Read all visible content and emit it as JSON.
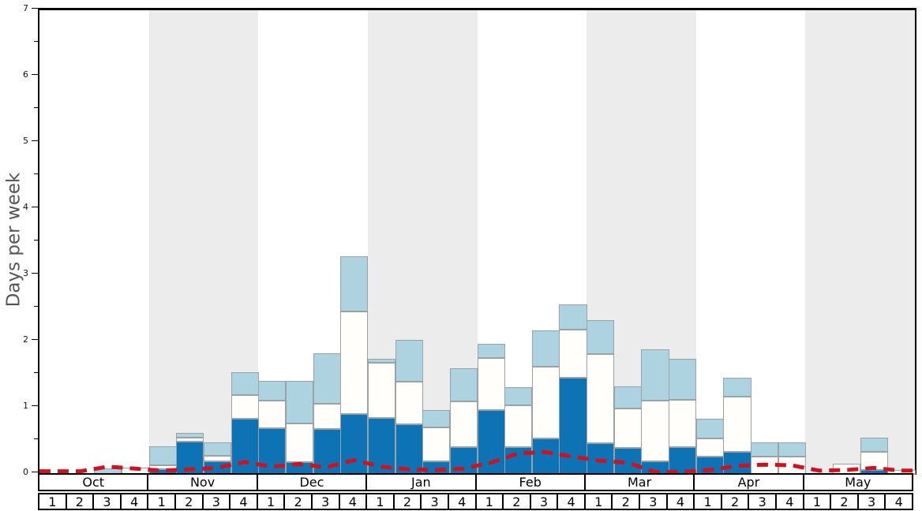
{
  "y_axis": {
    "title": "Days per week",
    "tick_labels": [
      "0",
      "1",
      "2",
      "3",
      "4",
      "5",
      "6",
      "7"
    ],
    "minor_ticks": [
      0.5,
      1.5,
      2.5,
      3.5,
      4.5,
      5.5,
      6.5
    ],
    "max": 7
  },
  "x_axis": {
    "months": [
      "Oct",
      "Nov",
      "Dec",
      "Jan",
      "Feb",
      "Mar",
      "Apr",
      "May"
    ],
    "week_numbers": [
      "1",
      "2",
      "3",
      "4"
    ],
    "shaded_month_indices": [
      1,
      3,
      5,
      7
    ]
  },
  "colors": {
    "dark_blue": "#0d73b5",
    "mid_white": "#fffefa",
    "light_blue": "#aed3e0",
    "red_line": "#d01120",
    "band_gray": "#ececec",
    "bar_border": "#9aa1a7",
    "frame": "#000000"
  },
  "chart_data": {
    "type": "bar",
    "stacked": true,
    "title": "",
    "xlabel": "",
    "ylabel": "Days per week",
    "ylim": [
      0,
      7
    ],
    "grid": false,
    "legend": "none",
    "categories": [
      "Oct 1",
      "Oct 2",
      "Oct 3",
      "Oct 4",
      "Nov 1",
      "Nov 2",
      "Nov 3",
      "Nov 4",
      "Dec 1",
      "Dec 2",
      "Dec 3",
      "Dec 4",
      "Jan 1",
      "Jan 2",
      "Jan 3",
      "Jan 4",
      "Feb 1",
      "Feb 2",
      "Feb 3",
      "Feb 4",
      "Mar 1",
      "Mar 2",
      "Mar 3",
      "Mar 4",
      "Apr 1",
      "Apr 2",
      "Apr 3",
      "Apr 4",
      "May 1",
      "May 2",
      "May 3",
      "May 4"
    ],
    "series": [
      {
        "name": "dark_blue_bottom_segment",
        "color_key": "dark_blue",
        "values": [
          0,
          0,
          0,
          0,
          0.07,
          0.49,
          0.19,
          0.83,
          0.69,
          0.18,
          0.68,
          0.9,
          0.84,
          0.75,
          0.19,
          0.4,
          0.96,
          0.41,
          0.53,
          1.45,
          0.47,
          0.39,
          0.19,
          0.41,
          0.26,
          0.33,
          0,
          0,
          0,
          0,
          0.06,
          0
        ]
      },
      {
        "name": "white_middle_segment",
        "color_key": "mid_white",
        "values": [
          0,
          0,
          0,
          0.09,
          0.06,
          0.06,
          0.09,
          0.36,
          0.42,
          0.58,
          0.38,
          1.55,
          0.84,
          0.64,
          0.51,
          0.69,
          0.79,
          0.62,
          1.09,
          0.73,
          1.34,
          0.6,
          0.92,
          0.71,
          0.28,
          0.84,
          0.26,
          0.26,
          0,
          0.15,
          0.27,
          0.06
        ]
      },
      {
        "name": "light_blue_top_segment",
        "color_key": "light_blue",
        "values": [
          0,
          0,
          0.08,
          0,
          0.29,
          0.07,
          0.2,
          0.35,
          0.3,
          0.64,
          0.76,
          0.84,
          0.06,
          0.64,
          0.27,
          0.51,
          0.21,
          0.28,
          0.55,
          0.38,
          0.51,
          0.33,
          0.77,
          0.62,
          0.29,
          0.28,
          0.22,
          0.22,
          0,
          0,
          0.22,
          0
        ]
      }
    ],
    "line_overlay": {
      "name": "red_dashed_line",
      "style": "dashed",
      "values": [
        0.04,
        0.04,
        0.11,
        0.08,
        0.05,
        0.07,
        0.09,
        0.18,
        0.11,
        0.15,
        0.1,
        0.21,
        0.11,
        0.07,
        0.06,
        0.08,
        0.17,
        0.31,
        0.33,
        0.26,
        0.2,
        0.17,
        0.03,
        0.03,
        0.06,
        0.12,
        0.14,
        0.13,
        0.05,
        0.06,
        0.09,
        0.05
      ]
    }
  }
}
